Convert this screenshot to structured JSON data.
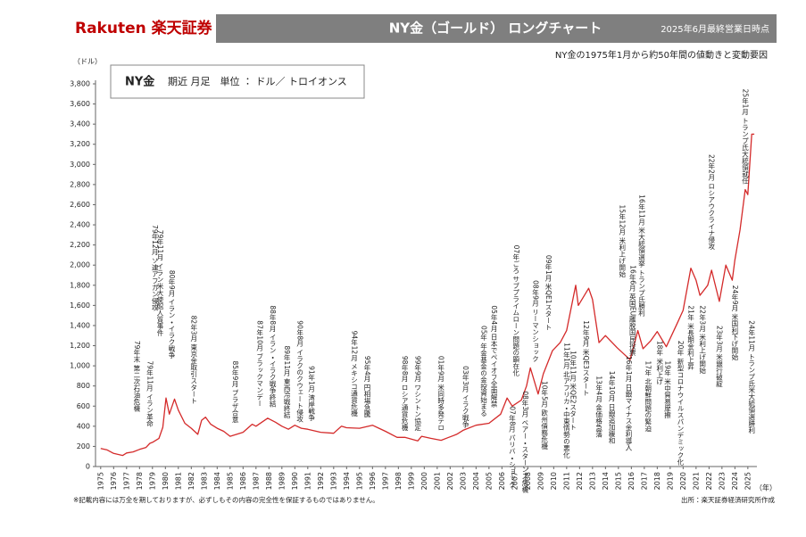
{
  "header": {
    "brand": "Rakuten 楽天証券",
    "title": "NY金（ゴールド） ロングチャート",
    "date": "2025年6月最終営業日時点"
  },
  "subtitle": "NY金の1975年1月から約50年間の値動きと変動要因",
  "legend_box": {
    "name": "NY金",
    "description": "期近 月足　単位 ： ドル／ トロイオンス"
  },
  "footnote": "※記載内容には万全を期しておりますが、必ずしもその内容の完全性を保証するものではありません。",
  "source": "出所：楽天証券経済研究所作成",
  "chart_data": {
    "type": "line",
    "y_label": "（ドル）",
    "x_label": "（年）",
    "xlim": [
      1974.6,
      2025.7
    ],
    "xticks": [
      1975,
      1976,
      1977,
      1978,
      1979,
      1980,
      1981,
      1982,
      1983,
      1984,
      1985,
      1986,
      1987,
      1988,
      1989,
      1990,
      1991,
      1992,
      1993,
      1994,
      1995,
      1996,
      1997,
      1998,
      1999,
      2000,
      2001,
      2002,
      2003,
      2004,
      2005,
      2006,
      2007,
      2008,
      2009,
      2010,
      2011,
      2012,
      2013,
      2014,
      2015,
      2016,
      2017,
      2018,
      2019,
      2020,
      2021,
      2022,
      2023,
      2024,
      2025
    ],
    "ylim": [
      0,
      3800
    ],
    "yticks": [
      0,
      200,
      400,
      600,
      800,
      {
        "value": 1000,
        "label": "1,000"
      },
      {
        "value": 1200,
        "label": "1,200"
      },
      {
        "value": 1400,
        "label": "1,400"
      },
      {
        "value": 1600,
        "label": "1,600"
      },
      {
        "value": 1800,
        "label": "1,800"
      },
      {
        "value": 2000,
        "label": "2,000"
      },
      {
        "value": 2200,
        "label": "2,200"
      },
      {
        "value": 2400,
        "label": "2,400"
      },
      {
        "value": 2600,
        "label": "2,600"
      },
      {
        "value": 2800,
        "label": "2,800"
      },
      {
        "value": 3000,
        "label": "3,000"
      },
      {
        "value": 3200,
        "label": "3,200"
      },
      {
        "value": 3400,
        "label": "3,400"
      },
      {
        "value": 3600,
        "label": "3,600"
      },
      {
        "value": 3800,
        "label": "3,800"
      }
    ],
    "series": [
      {
        "name": "NY金",
        "color": "#d42a2a",
        "x": [
          1975.0,
          1975.5,
          1976.0,
          1976.7,
          1977.0,
          1977.5,
          1978.0,
          1978.5,
          1978.8,
          1979.0,
          1979.5,
          1979.8,
          1980.05,
          1980.3,
          1980.7,
          1981.0,
          1981.5,
          1982.0,
          1982.5,
          1982.8,
          1983.1,
          1983.5,
          1984.0,
          1984.5,
          1985.0,
          1985.5,
          1986.0,
          1986.7,
          1987.0,
          1987.9,
          1988.5,
          1989.0,
          1989.5,
          1990.0,
          1990.5,
          1991.0,
          1992.0,
          1993.0,
          1993.6,
          1994.0,
          1995.0,
          1996.0,
          1996.5,
          1997.0,
          1997.9,
          1998.5,
          1999.5,
          1999.8,
          2000.5,
          2001.3,
          2001.8,
          2002.5,
          2003.0,
          2004.0,
          2005.0,
          2005.9,
          2006.4,
          2006.8,
          2007.5,
          2007.9,
          2008.2,
          2008.8,
          2009.2,
          2009.9,
          2010.5,
          2011.0,
          2011.7,
          2011.9,
          2012.7,
          2013.0,
          2013.5,
          2014.0,
          2014.9,
          2015.9,
          2016.5,
          2016.9,
          2017.5,
          2018.0,
          2018.7,
          2019.5,
          2020.0,
          2020.6,
          2021.0,
          2021.3,
          2021.9,
          2022.2,
          2022.8,
          2023.3,
          2023.8,
          2024.0,
          2024.4,
          2024.8,
          2025.0,
          2025.3,
          2025.5
        ],
        "values": [
          180,
          165,
          130,
          110,
          135,
          145,
          170,
          190,
          230,
          240,
          280,
          390,
          680,
          520,
          670,
          560,
          430,
          380,
          320,
          460,
          490,
          420,
          380,
          350,
          300,
          320,
          340,
          420,
          400,
          480,
          440,
          400,
          370,
          410,
          380,
          370,
          340,
          330,
          400,
          385,
          380,
          410,
          380,
          350,
          290,
          290,
          255,
          300,
          280,
          260,
          285,
          320,
          360,
          410,
          430,
          520,
          680,
          600,
          660,
          800,
          980,
          720,
          920,
          1150,
          1230,
          1350,
          1800,
          1600,
          1770,
          1660,
          1230,
          1300,
          1180,
          1060,
          1350,
          1170,
          1250,
          1340,
          1190,
          1410,
          1550,
          1970,
          1850,
          1700,
          1800,
          1950,
          1640,
          2000,
          1850,
          2050,
          2350,
          2750,
          2700,
          3300,
          3300
        ]
      }
    ],
    "annotations": [
      {
        "text": "79年末 第二次石油危機",
        "x": 1977.8,
        "y": 1250
      },
      {
        "text": "79年11月 イラン革命",
        "x": 1978.8,
        "y": 1050
      },
      {
        "text": "79年12月 ソ連アフガン侵攻",
        "x": 1979.2,
        "y": 2400
      },
      {
        "text": "79年11月 イラン米大使館人質事件",
        "x": 1979.6,
        "y": 2350
      },
      {
        "text": "80年9月 イラン・イラク戦争",
        "x": 1980.5,
        "y": 1950
      },
      {
        "text": "82年3月 東京金取引スタート",
        "x": 1982.2,
        "y": 1500
      },
      {
        "text": "85年9月 プラザ合意",
        "x": 1985.4,
        "y": 1050
      },
      {
        "text": "87年10月 ブラックマンデー",
        "x": 1987.3,
        "y": 1450
      },
      {
        "text": "88年8月 イラン・イラク戦争終結",
        "x": 1988.3,
        "y": 1600
      },
      {
        "text": "89年11月 東西冷戦終結",
        "x": 1989.4,
        "y": 1200
      },
      {
        "text": "90年8月 イラクのクウェート侵攻",
        "x": 1990.4,
        "y": 1450
      },
      {
        "text": "91年1月 湾岸戦争",
        "x": 1991.3,
        "y": 1000
      },
      {
        "text": "94年12月 メキシコ通貨危機",
        "x": 1994.6,
        "y": 1350
      },
      {
        "text": "95年4月 円相場急騰",
        "x": 1995.6,
        "y": 1100
      },
      {
        "text": "98年8月 ロシア通貨危機",
        "x": 1998.5,
        "y": 1100
      },
      {
        "text": "99年9月 ワシントン協定",
        "x": 1999.5,
        "y": 1100
      },
      {
        "text": "01年9月 米同時多発テロ",
        "x": 2001.3,
        "y": 1100
      },
      {
        "text": "03年3月 イラク戦争",
        "x": 2003.2,
        "y": 1000
      },
      {
        "text": "05年 年金基金の金投資始まる",
        "x": 2004.6,
        "y": 1400
      },
      {
        "text": "05年4月 日本でペイオフ全面解禁",
        "x": 2005.4,
        "y": 1600
      },
      {
        "text": "07年ごろ サブプライムローン問題の顕在化",
        "x": 2007.1,
        "y": 2200
      },
      {
        "text": "07年8月 パリバ・ショック",
        "x": 2006.8,
        "y": 600
      },
      {
        "text": "08年3月 ベアー・スターンズ危機",
        "x": 2007.8,
        "y": 750
      },
      {
        "text": "08年9月 リーマンショック",
        "x": 2008.6,
        "y": 1850
      },
      {
        "text": "10年5月 欧州債務危機",
        "x": 2009.3,
        "y": 850
      },
      {
        "text": "09年1月 米QE1スタート",
        "x": 2009.6,
        "y": 2100
      },
      {
        "text": "11年1月 北アフリカ・中東情勢の悪化",
        "x": 2011.0,
        "y": 1230
      },
      {
        "text": "10年11月 米QE2スタート",
        "x": 2011.5,
        "y": 1150
      },
      {
        "text": "12年9月 米QE3スタート",
        "x": 2012.5,
        "y": 1450
      },
      {
        "text": "13年4月 金価格急落",
        "x": 2013.5,
        "y": 900
      },
      {
        "text": "14年10月 日銀追加緩和",
        "x": 2014.5,
        "y": 950
      },
      {
        "text": "15年12月 米利上げ開始",
        "x": 2015.3,
        "y": 2600
      },
      {
        "text": "16年1月 日銀マイナス金利導入",
        "x": 2015.8,
        "y": 1100
      },
      {
        "text": "16年6月 英国EU離脱国民投票",
        "x": 2016.1,
        "y": 2000
      },
      {
        "text": "16年11月 米大統領選挙 トランプ氏勝利",
        "x": 2016.8,
        "y": 2700
      },
      {
        "text": "17年 北朝鮮問題の緊迫",
        "x": 2017.3,
        "y": 1050
      },
      {
        "text": "18年 米利上げ",
        "x": 2018.2,
        "y": 1250
      },
      {
        "text": "19年 米中貿易摩擦",
        "x": 2018.8,
        "y": 1050
      },
      {
        "text": "20年 新型コロナウイルスパンデミック化",
        "x": 2019.8,
        "y": 1250
      },
      {
        "text": "21年 米長期金利上昇",
        "x": 2020.6,
        "y": 1600
      },
      {
        "text": "22年3月 米利上げ開始",
        "x": 2021.5,
        "y": 1600
      },
      {
        "text": "22年2月 ロシアウクライナ侵攻",
        "x": 2022.2,
        "y": 3100
      },
      {
        "text": "23年3月 米銀行破綻",
        "x": 2022.8,
        "y": 1400
      },
      {
        "text": "24年9月 米国利下げ開始",
        "x": 2024.0,
        "y": 1800
      },
      {
        "text": "25年1月 トランプ氏大統領就任",
        "x": 2024.8,
        "y": 3750
      },
      {
        "text": "24年11月 トランプ氏米大統領選勝利",
        "x": 2025.3,
        "y": 1450
      }
    ]
  }
}
